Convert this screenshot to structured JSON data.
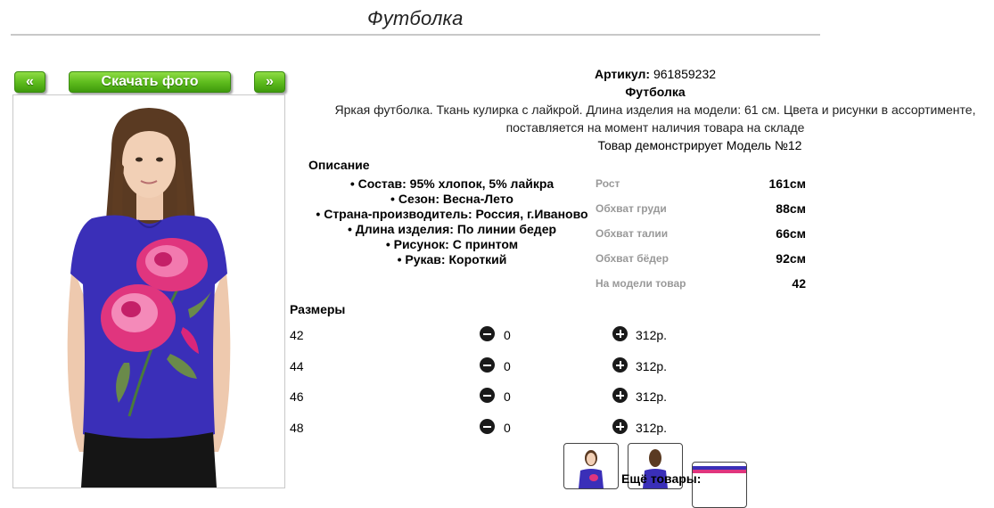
{
  "page": {
    "title": "Футболка"
  },
  "buttons": {
    "prev": "«",
    "download": "Скачать фото",
    "next": "»"
  },
  "product": {
    "article_label": "Артикул:",
    "article_value": "961859232",
    "name": "Футболка",
    "description": "Яркая футболка. Ткань кулирка с лайкрой. Длина изделия на модели: 61 см. Цвета и рисунки в ассортименте, поставляется на момент наличия товара на складе",
    "model_line": "Товар демонстрирует Модель №12"
  },
  "description_section": {
    "title": "Описание",
    "items": [
      "Состав: 95% хлопок, 5% лайкра",
      "Сезон: Весна-Лето",
      "Страна-производитель: Россия, г.Иваново",
      "Длина изделия: По линии бедер",
      "Рисунок: С принтом",
      "Рукав: Короткий"
    ]
  },
  "model_measurements": [
    {
      "label": "Рост",
      "value": "161см"
    },
    {
      "label": "Обхват груди",
      "value": "88см"
    },
    {
      "label": "Обхват талии",
      "value": "66см"
    },
    {
      "label": "Обхват бёдер",
      "value": "92см"
    },
    {
      "label": "На модели товар",
      "value": "42"
    }
  ],
  "sizes": {
    "title": "Размеры",
    "rows": [
      {
        "size": "42",
        "qty": "0",
        "price": "312р."
      },
      {
        "size": "44",
        "qty": "0",
        "price": "312р."
      },
      {
        "size": "46",
        "qty": "0",
        "price": "312р."
      },
      {
        "size": "48",
        "qty": "0",
        "price": "312р."
      }
    ]
  },
  "more_products": "Ещё товары:",
  "colors": {
    "accent_green": "#5fbd1e",
    "shirt_blue": "#3a2fb8",
    "flower_pink": "#e0357e"
  }
}
